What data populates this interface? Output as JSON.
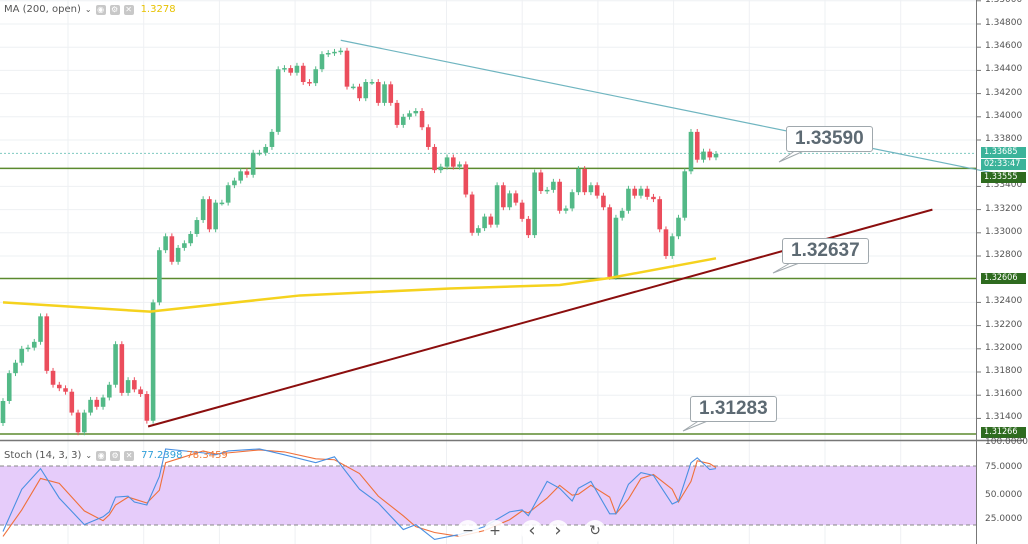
{
  "ma_legend": {
    "label": "MA (200, open)",
    "value": "1.3278"
  },
  "stoch_legend": {
    "label": "Stoch (14, 3, 3)",
    "k_value": "77.2398",
    "d_value": "78.3459"
  },
  "price_axis": [
    "1.35000",
    "1.34800",
    "1.34600",
    "1.34400",
    "1.34200",
    "1.34000",
    "1.33800",
    "1.33400",
    "1.33200",
    "1.33000",
    "1.32800",
    "1.32400",
    "1.32200",
    "1.32000",
    "1.31800",
    "1.31600",
    "1.31400"
  ],
  "price_axis_values": [
    1.35,
    1.348,
    1.346,
    1.344,
    1.342,
    1.34,
    1.338,
    1.334,
    1.332,
    1.33,
    1.328,
    1.324,
    1.322,
    1.32,
    1.318,
    1.316,
    1.314
  ],
  "tags": {
    "last_price": "1.33685",
    "countdown": "02:33:47",
    "level1": "1.33555",
    "level2": "1.32606",
    "level3": "1.31266"
  },
  "stoch_axis": [
    "100.0000",
    "75.0000",
    "50.0000",
    "25.0000"
  ],
  "callouts": {
    "resistance": "1.33590",
    "support": "1.32637",
    "low": "1.31283"
  },
  "controls": {
    "zoom_out": "−",
    "zoom_in": "+",
    "scroll_left": "‹",
    "scroll_right": "›",
    "reset": "↻"
  },
  "colors": {
    "bull": "#53b987",
    "bear": "#eb4d5c",
    "ma": "#f5d21e",
    "trend_down": "#6fb5c0",
    "trend_up": "#8b0e0e",
    "level": "#5b8a2e",
    "stoch_k": "#4a90e2",
    "stoch_d": "#f0703a",
    "stoch_band": "#e6ccfa"
  },
  "chart_data": {
    "type": "candlestick",
    "first_open": 1.3136,
    "closes": [
      1.3155,
      1.3179,
      1.3188,
      1.32,
      1.3201,
      1.3206,
      1.3228,
      1.3181,
      1.3169,
      1.3166,
      1.3163,
      1.3145,
      1.3128,
      1.3145,
      1.3156,
      1.315,
      1.3158,
      1.3169,
      1.3204,
      1.3162,
      1.3173,
      1.3165,
      1.3161,
      1.3138,
      1.324,
      1.3285,
      1.3297,
      1.3275,
      1.3287,
      1.3291,
      1.3299,
      1.3311,
      1.3329,
      1.3303,
      1.3326,
      1.3326,
      1.3341,
      1.3345,
      1.3353,
      1.335,
      1.3369,
      1.3369,
      1.3374,
      1.3387,
      1.3441,
      1.3442,
      1.3438,
      1.3444,
      1.343,
      1.3429,
      1.3441,
      1.3454,
      1.3455,
      1.3456,
      1.3457,
      1.3426,
      1.3426,
      1.3416,
      1.343,
      1.343,
      1.3412,
      1.3428,
      1.3412,
      1.3393,
      1.34,
      1.3403,
      1.3405,
      1.3391,
      1.3374,
      1.3354,
      1.3357,
      1.3365,
      1.3357,
      1.3359,
      1.3333,
      1.33,
      1.3304,
      1.3314,
      1.3307,
      1.3341,
      1.3322,
      1.3334,
      1.3326,
      1.3312,
      1.3298,
      1.3352,
      1.3336,
      1.3337,
      1.3344,
      1.3319,
      1.3321,
      1.3335,
      1.3355,
      1.3335,
      1.3341,
      1.3332,
      1.3322,
      1.3262,
      1.3313,
      1.3319,
      1.3338,
      1.3332,
      1.3338,
      1.3331,
      1.3329,
      1.3303,
      1.328,
      1.3297,
      1.3313,
      1.3353,
      1.3387,
      1.3363,
      1.337,
      1.3365,
      1.3368
    ],
    "ylim": [
      1.3116,
      1.35
    ],
    "ma200": [
      [
        0,
        1.324
      ],
      [
        23.5,
        1.3232
      ],
      [
        47.5,
        1.3246
      ],
      [
        71.5,
        1.3252
      ],
      [
        89,
        1.3255
      ],
      [
        97,
        1.3261
      ],
      [
        114,
        1.3278
      ]
    ],
    "horizontal_levels": [
      1.33555,
      1.32606,
      1.31266
    ],
    "last_price_line": 1.33685,
    "trend_down": [
      [
        54,
        1.3466
      ],
      [
        163.4,
        1.3346
      ]
    ],
    "trend_up": [
      [
        23.2,
        1.3133
      ],
      [
        148.6,
        1.332
      ]
    ],
    "stoch": {
      "ylim": [
        0,
        100
      ],
      "bands": [
        20,
        80
      ],
      "index": [
        0,
        3,
        6,
        9,
        13,
        16,
        17,
        18,
        20,
        21,
        23,
        25,
        26,
        32,
        34,
        36,
        41,
        45,
        50,
        53,
        57,
        60,
        64,
        66,
        69,
        73,
        77,
        81,
        83,
        84,
        87,
        89,
        91,
        92,
        94,
        97,
        98,
        100,
        102,
        104,
        107,
        108,
        110,
        111,
        113,
        114
      ],
      "k": [
        13,
        56,
        77,
        47,
        20,
        28,
        33,
        48,
        49,
        43,
        40,
        69,
        97,
        93,
        91,
        95,
        97,
        91,
        83,
        89,
        56,
        42,
        15,
        20,
        5,
        10,
        18,
        33,
        35,
        29,
        64,
        57,
        44,
        57,
        64,
        31,
        31,
        61,
        73,
        70,
        41,
        44,
        83,
        88,
        76,
        77
      ],
      "d": [
        8,
        35,
        67,
        62,
        34,
        24,
        30,
        40,
        48,
        46,
        42,
        55,
        83,
        95,
        92,
        93,
        96,
        94,
        87,
        86,
        72,
        49,
        29,
        18,
        12,
        8,
        14,
        25,
        34,
        32,
        47,
        60,
        50,
        51,
        60,
        48,
        31,
        46,
        67,
        71,
        56,
        43,
        64,
        85,
        82,
        78
      ]
    }
  }
}
